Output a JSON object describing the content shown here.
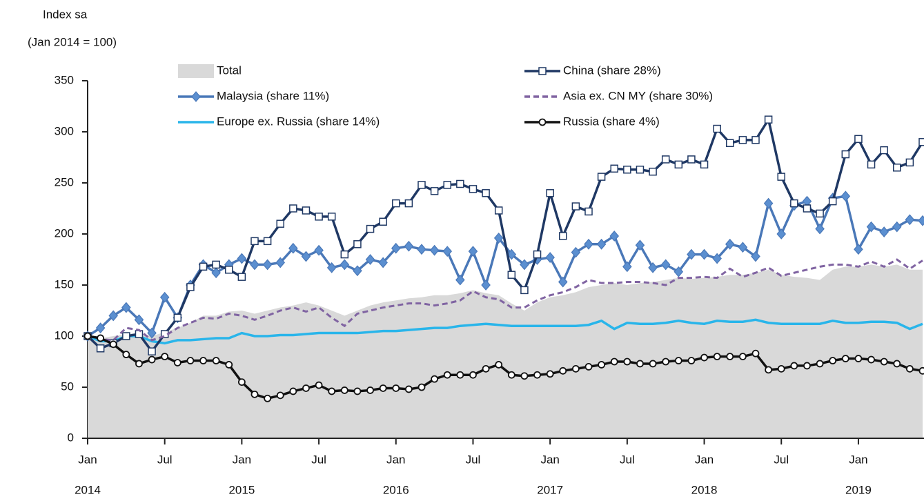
{
  "chart_data": {
    "type": "line",
    "title": "Index sa",
    "subtitle": "(Jan 2014 = 100)",
    "x": [
      "2014-01",
      "2014-02",
      "2014-03",
      "2014-04",
      "2014-05",
      "2014-06",
      "2014-07",
      "2014-08",
      "2014-09",
      "2014-10",
      "2014-11",
      "2014-12",
      "2015-01",
      "2015-02",
      "2015-03",
      "2015-04",
      "2015-05",
      "2015-06",
      "2015-07",
      "2015-08",
      "2015-09",
      "2015-10",
      "2015-11",
      "2015-12",
      "2016-01",
      "2016-02",
      "2016-03",
      "2016-04",
      "2016-05",
      "2016-06",
      "2016-07",
      "2016-08",
      "2016-09",
      "2016-10",
      "2016-11",
      "2016-12",
      "2017-01",
      "2017-02",
      "2017-03",
      "2017-04",
      "2017-05",
      "2017-06",
      "2017-07",
      "2017-08",
      "2017-09",
      "2017-10",
      "2017-11",
      "2017-12",
      "2018-01",
      "2018-02",
      "2018-03",
      "2018-04",
      "2018-05",
      "2018-06",
      "2018-07",
      "2018-08",
      "2018-09",
      "2018-10",
      "2018-11",
      "2018-12",
      "2019-01",
      "2019-02",
      "2019-03",
      "2019-04",
      "2019-05",
      "2019-06"
    ],
    "xticks": [
      {
        "value": "2014-01",
        "label": "Jan"
      },
      {
        "value": "2014-07",
        "label": "Jul"
      },
      {
        "value": "2015-01",
        "label": "Jan"
      },
      {
        "value": "2015-07",
        "label": "Jul"
      },
      {
        "value": "2016-01",
        "label": "Jan"
      },
      {
        "value": "2016-07",
        "label": "Jul"
      },
      {
        "value": "2017-01",
        "label": "Jan"
      },
      {
        "value": "2017-07",
        "label": "Jul"
      },
      {
        "value": "2018-01",
        "label": "Jan"
      },
      {
        "value": "2018-07",
        "label": "Jul"
      },
      {
        "value": "2019-01",
        "label": "Jan"
      }
    ],
    "xtick_years": [
      {
        "value": "2014-01",
        "label": "2014"
      },
      {
        "value": "2015-01",
        "label": "2015"
      },
      {
        "value": "2016-01",
        "label": "2016"
      },
      {
        "value": "2017-01",
        "label": "2017"
      },
      {
        "value": "2018-01",
        "label": "2018"
      },
      {
        "value": "2019-01",
        "label": "2019"
      }
    ],
    "ylim": [
      0,
      350
    ],
    "yticks": [
      0,
      50,
      100,
      150,
      200,
      250,
      300,
      350
    ],
    "series": [
      {
        "name": "Total",
        "style": "area",
        "color": "#d9d9d9",
        "values": [
          100,
          98,
          100,
          102,
          103,
          100,
          104,
          108,
          113,
          120,
          120,
          124,
          125,
          122,
          125,
          128,
          130,
          133,
          130,
          125,
          120,
          125,
          130,
          133,
          135,
          137,
          138,
          140,
          140,
          142,
          145,
          142,
          140,
          132,
          125,
          133,
          138,
          140,
          143,
          148,
          150,
          152,
          150,
          152,
          153,
          155,
          157,
          156,
          157,
          158,
          160,
          160,
          162,
          165,
          160,
          158,
          157,
          155,
          165,
          168,
          168,
          170,
          168,
          170,
          165,
          165
        ]
      },
      {
        "name": "Malaysia (share 11%)",
        "style": "line",
        "marker": "diamond",
        "color": "#4a78b8",
        "values": [
          100,
          108,
          120,
          128,
          116,
          103,
          138,
          118,
          150,
          170,
          162,
          170,
          176,
          170,
          170,
          172,
          186,
          178,
          184,
          167,
          170,
          164,
          175,
          172,
          186,
          188,
          185,
          184,
          183,
          155,
          183,
          150,
          196,
          180,
          170,
          175,
          177,
          153,
          182,
          190,
          190,
          198,
          168,
          189,
          167,
          170,
          163,
          180,
          180,
          176,
          190,
          187,
          178,
          230,
          200,
          228,
          232,
          205,
          235,
          237,
          185,
          207,
          202,
          207,
          214,
          213
        ]
      },
      {
        "name": "Europe ex. Russia (share 14%)",
        "style": "line",
        "color": "#29b5ea",
        "values": [
          100,
          95,
          95,
          100,
          100,
          95,
          93,
          96,
          96,
          97,
          98,
          98,
          103,
          100,
          100,
          101,
          101,
          102,
          103,
          103,
          103,
          103,
          104,
          105,
          105,
          106,
          107,
          108,
          108,
          110,
          111,
          112,
          111,
          110,
          110,
          110,
          110,
          110,
          110,
          111,
          115,
          107,
          113,
          112,
          112,
          113,
          115,
          113,
          112,
          115,
          114,
          114,
          116,
          113,
          112,
          112,
          112,
          112,
          115,
          113,
          113,
          114,
          114,
          113,
          107,
          112
        ]
      },
      {
        "name": "China (share 28%)",
        "style": "line",
        "marker": "square",
        "color": "#1f3864",
        "values": [
          100,
          88,
          93,
          100,
          102,
          85,
          102,
          118,
          148,
          168,
          170,
          165,
          158,
          193,
          193,
          210,
          225,
          223,
          217,
          217,
          180,
          190,
          205,
          212,
          230,
          230,
          248,
          242,
          248,
          249,
          244,
          240,
          223,
          160,
          145,
          180,
          240,
          198,
          227,
          222,
          256,
          264,
          263,
          263,
          261,
          273,
          268,
          273,
          268,
          303,
          289,
          292,
          292,
          312,
          256,
          230,
          225,
          220,
          232,
          278,
          293,
          268,
          282,
          265,
          270,
          290
        ]
      },
      {
        "name": "Asia ex. CN MY (share 30%)",
        "style": "dash",
        "color": "#8064a2",
        "values": [
          100,
          97,
          96,
          108,
          106,
          96,
          100,
          108,
          113,
          118,
          117,
          122,
          120,
          116,
          120,
          125,
          128,
          124,
          128,
          118,
          110,
          122,
          125,
          128,
          130,
          132,
          132,
          130,
          132,
          135,
          144,
          138,
          136,
          128,
          128,
          135,
          140,
          143,
          148,
          155,
          152,
          152,
          153,
          153,
          152,
          150,
          157,
          157,
          158,
          157,
          166,
          158,
          162,
          167,
          159,
          162,
          165,
          168,
          170,
          170,
          168,
          173,
          168,
          175,
          166,
          174
        ]
      },
      {
        "name": "Russia (share 4%)",
        "style": "line",
        "marker": "circle",
        "color": "#111111",
        "values": [
          100,
          98,
          92,
          82,
          73,
          77,
          80,
          74,
          76,
          76,
          76,
          72,
          55,
          43,
          39,
          42,
          46,
          49,
          52,
          46,
          47,
          46,
          47,
          49,
          49,
          48,
          50,
          58,
          62,
          62,
          62,
          68,
          72,
          62,
          61,
          62,
          63,
          66,
          68,
          70,
          72,
          75,
          75,
          73,
          73,
          75,
          76,
          76,
          79,
          80,
          80,
          80,
          83,
          67,
          68,
          71,
          71,
          73,
          76,
          78,
          78,
          77,
          75,
          73,
          68,
          66
        ]
      }
    ]
  }
}
